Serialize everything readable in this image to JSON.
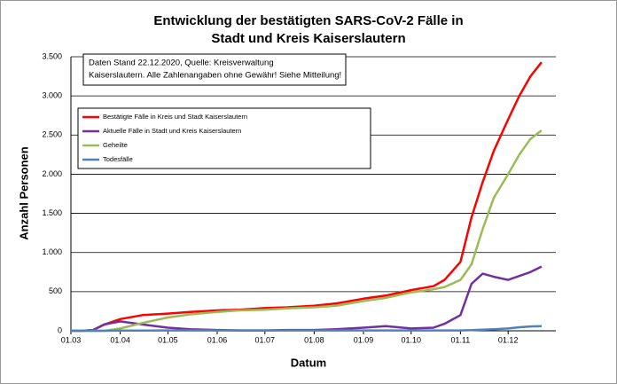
{
  "chart_data": {
    "type": "line",
    "title": [
      "Entwicklung der bestätigten SARS-CoV-2 Fälle in",
      "Stadt und Kreis Kaiserslautern"
    ],
    "annotation": [
      "Daten Stand 22.12.2020, Quelle: Kreisverwaltung",
      "Kaiserslautern. Alle Zahlenangaben ohne Gewähr! Siehe Mitteilung!"
    ],
    "x_label": "Datum",
    "y_label": "Anzahl Personen",
    "x": [
      "01.03",
      "08.03",
      "15.03",
      "22.03",
      "01.04",
      "15.04",
      "01.05",
      "15.05",
      "01.06",
      "15.06",
      "01.07",
      "15.07",
      "01.08",
      "15.08",
      "01.09",
      "15.09",
      "01.10",
      "15.10",
      "22.10",
      "01.11",
      "08.11",
      "15.11",
      "22.11",
      "01.12",
      "08.12",
      "15.12",
      "22.12"
    ],
    "xlim": [
      "01.03",
      "31.12"
    ],
    "xticks": [
      "01.03",
      "01.04",
      "01.05",
      "01.06",
      "01.07",
      "01.08",
      "01.09",
      "01.10",
      "01.11",
      "01.12"
    ],
    "ylim": [
      0,
      3500
    ],
    "yticks": [
      0,
      500,
      {
        "value": 1000,
        "label": "1.000"
      },
      {
        "value": 1500,
        "label": "1.500"
      },
      {
        "value": 2000,
        "label": "2.000"
      },
      {
        "value": 2500,
        "label": "2.500"
      },
      {
        "value": 3000,
        "label": "3.000"
      },
      {
        "value": 3500,
        "label": "3.500"
      }
    ],
    "grid": true,
    "legend": "upper-left",
    "series": [
      {
        "name": "Bestätigte Fälle in Kreis und Stadt Kaiserslautern",
        "color": "#ff0000",
        "values": [
          0,
          0,
          10,
          80,
          150,
          200,
          220,
          240,
          260,
          270,
          290,
          300,
          320,
          350,
          410,
          450,
          520,
          570,
          650,
          880,
          1450,
          1900,
          2300,
          2700,
          3000,
          3250,
          3430
        ]
      },
      {
        "name": "Aktuelle Fälle in Stadt und Kreis Kaiserslautern",
        "color": "#7030a0",
        "values": [
          0,
          0,
          10,
          80,
          120,
          80,
          40,
          20,
          10,
          5,
          5,
          10,
          10,
          20,
          40,
          60,
          30,
          40,
          90,
          200,
          600,
          730,
          690,
          650,
          700,
          750,
          820
        ]
      },
      {
        "name": "Geheilte",
        "color": "#9bbb59",
        "values": [
          0,
          0,
          0,
          0,
          30,
          100,
          170,
          210,
          240,
          260,
          270,
          285,
          300,
          320,
          380,
          420,
          490,
          530,
          560,
          650,
          850,
          1300,
          1700,
          2000,
          2250,
          2450,
          2560
        ]
      },
      {
        "name": "Todesfälle",
        "color": "#4f81bd",
        "values": [
          0,
          0,
          0,
          0,
          2,
          3,
          4,
          4,
          4,
          4,
          4,
          4,
          4,
          4,
          4,
          4,
          4,
          4,
          4,
          5,
          8,
          15,
          20,
          30,
          45,
          55,
          60
        ]
      }
    ]
  }
}
